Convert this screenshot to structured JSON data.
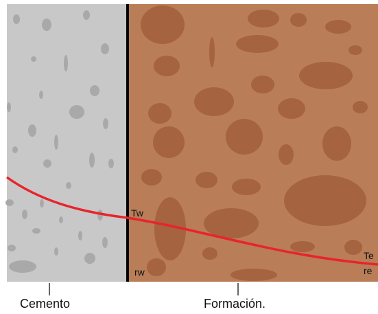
{
  "colors": {
    "cement": "#c8c8c8",
    "cement_particle": "#a9a9a9",
    "formation": "#b97d58",
    "formation_particle": "#a5633f",
    "boundary": "#000000",
    "temperature_curve": "#e8242b",
    "tick": "#333333"
  },
  "labels": {
    "tw": "Tw",
    "rw": "rw",
    "te": "Te",
    "re": "re",
    "cement": "Cemento",
    "formation": "Formación."
  }
}
